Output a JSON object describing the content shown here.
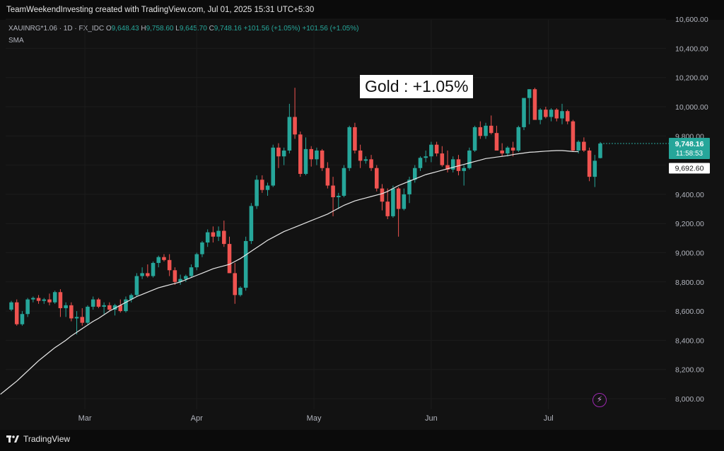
{
  "header": {
    "text": "TeamWeekendInvesting created with TradingView.com, Jul 01, 2025 15:31 UTC+5:30"
  },
  "legend": {
    "symbol": "XAUINRG*1.06 · 1D · FX_IDC",
    "o_label": "O",
    "o_value": "9,648.43",
    "h_label": "H",
    "h_value": "9,758.60",
    "l_label": "L",
    "l_value": "9,645.70",
    "c_label": "C",
    "c_value": "9,748.16",
    "change": "+101.56 (+1.05%)",
    "change2": "+101.56 (+1.05%)",
    "indicator": "SMA"
  },
  "title_box": "Gold : +1.05%",
  "footer": {
    "brand": "TradingView"
  },
  "price_tags": {
    "last_price": "9,748.16",
    "countdown": "11:58:53",
    "sma_value": "9,692.60"
  },
  "colors": {
    "up": "#26a69a",
    "down": "#ef5350",
    "sma": "#e8e8e8",
    "background": "#121212"
  },
  "icons": {
    "alert": "lightning-alert-icon",
    "logo": "tradingview-logo-icon"
  },
  "chart_data": {
    "type": "candlestick",
    "ylim": [
      7940,
      10640
    ],
    "y_ticks": [
      8000,
      8200,
      8400,
      8600,
      8800,
      9000,
      9200,
      9400,
      9600,
      9800,
      10000,
      10200,
      10400,
      10600
    ],
    "y_tick_labels": [
      "8,000.00",
      "8,200.00",
      "8,400.00",
      "8,600.00",
      "8,800.00",
      "9,000.00",
      "9,200.00",
      "9,400.00",
      "9,600.00",
      "9,800.00",
      "10,000.00",
      "10,200.00",
      "10,400.00",
      "10,600.00"
    ],
    "x_labels": [
      "Mar",
      "Apr",
      "May",
      "Jun",
      "Jul"
    ],
    "x_label_index": [
      13.5,
      34,
      55.5,
      77,
      98.5
    ],
    "candles": [
      [
        8610,
        8670,
        8600,
        8660
      ],
      [
        8660,
        8680,
        8500,
        8510
      ],
      [
        8510,
        8600,
        8500,
        8580
      ],
      [
        8580,
        8690,
        8560,
        8680
      ],
      [
        8680,
        8700,
        8660,
        8690
      ],
      [
        8690,
        8710,
        8650,
        8670
      ],
      [
        8670,
        8690,
        8650,
        8680
      ],
      [
        8680,
        8720,
        8640,
        8660
      ],
      [
        8660,
        8740,
        8650,
        8730
      ],
      [
        8730,
        8750,
        8560,
        8620
      ],
      [
        8620,
        8660,
        8560,
        8640
      ],
      [
        8640,
        8660,
        8530,
        8550
      ],
      [
        8550,
        8600,
        8440,
        8560
      ],
      [
        8560,
        8620,
        8500,
        8520
      ],
      [
        8520,
        8640,
        8510,
        8630
      ],
      [
        8630,
        8700,
        8610,
        8680
      ],
      [
        8680,
        8690,
        8620,
        8630
      ],
      [
        8630,
        8660,
        8580,
        8640
      ],
      [
        8640,
        8660,
        8600,
        8610
      ],
      [
        8610,
        8650,
        8570,
        8640
      ],
      [
        8640,
        8680,
        8590,
        8600
      ],
      [
        8600,
        8700,
        8590,
        8680
      ],
      [
        8680,
        8720,
        8660,
        8710
      ],
      [
        8710,
        8860,
        8700,
        8840
      ],
      [
        8840,
        8900,
        8820,
        8860
      ],
      [
        8860,
        8920,
        8830,
        8840
      ],
      [
        8840,
        8940,
        8830,
        8930
      ],
      [
        8930,
        8980,
        8900,
        8970
      ],
      [
        8970,
        8990,
        8940,
        8950
      ],
      [
        8950,
        8990,
        8840,
        8880
      ],
      [
        8880,
        8900,
        8780,
        8800
      ],
      [
        8800,
        8850,
        8780,
        8820
      ],
      [
        8820,
        8850,
        8800,
        8840
      ],
      [
        8840,
        8920,
        8830,
        8900
      ],
      [
        8900,
        9000,
        8880,
        8990
      ],
      [
        8990,
        9080,
        8970,
        9070
      ],
      [
        9070,
        9160,
        9040,
        9140
      ],
      [
        9140,
        9180,
        9070,
        9110
      ],
      [
        9110,
        9180,
        9080,
        9150
      ],
      [
        9150,
        9220,
        9040,
        9060
      ],
      [
        9060,
        9110,
        8860,
        8860
      ],
      [
        8860,
        8930,
        8650,
        8710
      ],
      [
        8710,
        8770,
        8700,
        8760
      ],
      [
        8760,
        9110,
        8740,
        9080
      ],
      [
        9080,
        9340,
        9060,
        9320
      ],
      [
        9320,
        9530,
        9300,
        9500
      ],
      [
        9500,
        9530,
        9410,
        9430
      ],
      [
        9430,
        9480,
        9390,
        9460
      ],
      [
        9460,
        9740,
        9450,
        9720
      ],
      [
        9720,
        9750,
        9580,
        9660
      ],
      [
        9660,
        9720,
        9600,
        9700
      ],
      [
        9700,
        10020,
        9680,
        9930
      ],
      [
        9930,
        10130,
        9780,
        9810
      ],
      [
        9810,
        9830,
        9520,
        9540
      ],
      [
        9540,
        9790,
        9530,
        9710
      ],
      [
        9710,
        9730,
        9590,
        9640
      ],
      [
        9640,
        9720,
        9600,
        9700
      ],
      [
        9700,
        9710,
        9560,
        9580
      ],
      [
        9580,
        9620,
        9440,
        9460
      ],
      [
        9460,
        9520,
        9250,
        9380
      ],
      [
        9380,
        9410,
        9300,
        9390
      ],
      [
        9390,
        9600,
        9380,
        9580
      ],
      [
        9580,
        9870,
        9560,
        9860
      ],
      [
        9860,
        9890,
        9680,
        9700
      ],
      [
        9700,
        9740,
        9580,
        9630
      ],
      [
        9630,
        9660,
        9610,
        9640
      ],
      [
        9640,
        9670,
        9560,
        9580
      ],
      [
        9580,
        9600,
        9420,
        9440
      ],
      [
        9440,
        9470,
        9290,
        9350
      ],
      [
        9350,
        9440,
        9230,
        9250
      ],
      [
        9250,
        9460,
        9240,
        9440
      ],
      [
        9440,
        9450,
        9110,
        9300
      ],
      [
        9300,
        9440,
        9290,
        9400
      ],
      [
        9400,
        9520,
        9340,
        9500
      ],
      [
        9500,
        9600,
        9480,
        9580
      ],
      [
        9580,
        9660,
        9560,
        9650
      ],
      [
        9650,
        9700,
        9620,
        9660
      ],
      [
        9660,
        9760,
        9620,
        9740
      ],
      [
        9740,
        9760,
        9660,
        9680
      ],
      [
        9680,
        9730,
        9590,
        9600
      ],
      [
        9600,
        9700,
        9550,
        9570
      ],
      [
        9570,
        9660,
        9550,
        9640
      ],
      [
        9640,
        9670,
        9530,
        9560
      ],
      [
        9560,
        9600,
        9460,
        9580
      ],
      [
        9580,
        9720,
        9570,
        9700
      ],
      [
        9700,
        9870,
        9690,
        9860
      ],
      [
        9860,
        9900,
        9780,
        9800
      ],
      [
        9800,
        9890,
        9780,
        9870
      ],
      [
        9870,
        9940,
        9810,
        9820
      ],
      [
        9820,
        9870,
        9720,
        9700
      ],
      [
        9700,
        9750,
        9660,
        9680
      ],
      [
        9680,
        9730,
        9660,
        9720
      ],
      [
        9720,
        9760,
        9660,
        9700
      ],
      [
        9700,
        9870,
        9690,
        9860
      ],
      [
        9860,
        10050,
        9840,
        10060
      ],
      [
        10060,
        10120,
        9880,
        10120
      ],
      [
        10120,
        10130,
        9920,
        9910
      ],
      [
        9910,
        9990,
        9880,
        9980
      ],
      [
        9980,
        10000,
        9920,
        9930
      ],
      [
        9930,
        9990,
        9900,
        9980
      ],
      [
        9980,
        9990,
        9900,
        9920
      ],
      [
        9920,
        10020,
        9880,
        9970
      ],
      [
        9970,
        9980,
        9880,
        9900
      ],
      [
        9900,
        9910,
        9690,
        9700
      ],
      [
        9700,
        9770,
        9680,
        9760
      ],
      [
        9760,
        9790,
        9690,
        9700
      ],
      [
        9700,
        9720,
        9490,
        9520
      ],
      [
        9520,
        9670,
        9450,
        9630
      ],
      [
        9648.43,
        9758.6,
        9645.7,
        9748.16
      ]
    ],
    "sma": [
      8030,
      8060,
      8090,
      8120,
      8155,
      8190,
      8225,
      8260,
      8290,
      8320,
      8350,
      8375,
      8400,
      8430,
      8455,
      8480,
      8505,
      8530,
      8550,
      8575,
      8600,
      8620,
      8640,
      8660,
      8680,
      8700,
      8715,
      8730,
      8745,
      8760,
      8770,
      8780,
      8790,
      8800,
      8815,
      8830,
      8845,
      8860,
      8875,
      8890,
      8900,
      8910,
      8920,
      8940,
      8960,
      8985,
      9010,
      9035,
      9060,
      9085,
      9105,
      9125,
      9145,
      9160,
      9175,
      9190,
      9205,
      9220,
      9235,
      9250,
      9265,
      9285,
      9305,
      9325,
      9340,
      9355,
      9365,
      9375,
      9385,
      9395,
      9405,
      9420,
      9440,
      9460,
      9475,
      9490,
      9505,
      9520,
      9535,
      9545,
      9555,
      9565,
      9575,
      9585,
      9595,
      9605,
      9615,
      9625,
      9635,
      9645,
      9650,
      9655,
      9660,
      9665,
      9672,
      9678,
      9683,
      9688,
      9690,
      9693,
      9696,
      9698,
      9700,
      9700,
      9697,
      9693,
      9692.6
    ]
  }
}
